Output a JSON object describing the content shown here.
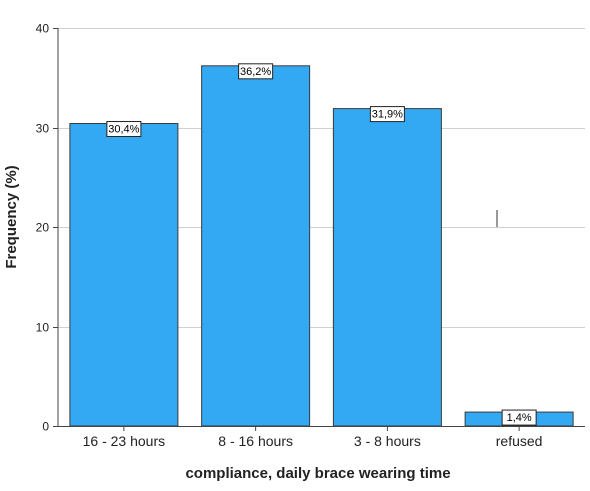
{
  "chart_data": {
    "type": "bar",
    "categories": [
      "16 - 23 hours",
      "8 - 16 hours",
      "3 - 8 hours",
      "refused"
    ],
    "values": [
      30.4,
      36.2,
      31.9,
      1.4
    ],
    "data_labels": [
      "30,4%",
      "36,2%",
      "31,9%",
      "1,4%"
    ],
    "xlabel": "compliance, daily brace wearing time",
    "ylabel": "Frequency (%)",
    "ylim": [
      0,
      40
    ],
    "yticks": [
      0,
      10,
      20,
      30,
      40
    ],
    "grid": true,
    "legend": "none",
    "colors": {
      "bar_fill": "#33a9f3",
      "bar_stroke": "#3a3a3a",
      "grid": "#d0d0d0",
      "axis": "#444444"
    }
  }
}
